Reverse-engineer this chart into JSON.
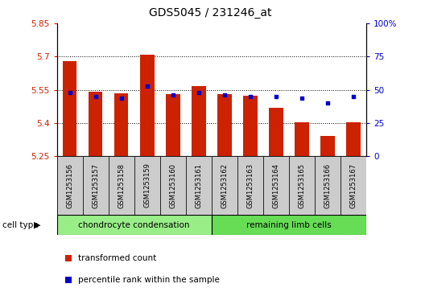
{
  "title": "GDS5045 / 231246_at",
  "samples": [
    "GSM1253156",
    "GSM1253157",
    "GSM1253158",
    "GSM1253159",
    "GSM1253160",
    "GSM1253161",
    "GSM1253162",
    "GSM1253163",
    "GSM1253164",
    "GSM1253165",
    "GSM1253166",
    "GSM1253167"
  ],
  "transformed_counts": [
    5.68,
    5.54,
    5.535,
    5.71,
    5.53,
    5.565,
    5.53,
    5.525,
    5.47,
    5.405,
    5.34,
    5.405
  ],
  "percentile_ranks": [
    48,
    45,
    44,
    53,
    46,
    48,
    46,
    45,
    45,
    44,
    40,
    45
  ],
  "bar_bottom": 5.25,
  "ylim_left": [
    5.25,
    5.85
  ],
  "ylim_right": [
    0,
    100
  ],
  "yticks_left": [
    5.25,
    5.4,
    5.55,
    5.7,
    5.85
  ],
  "yticks_right": [
    0,
    25,
    50,
    75,
    100
  ],
  "ytick_labels_left": [
    "5.25",
    "5.4",
    "5.55",
    "5.7",
    "5.85"
  ],
  "ytick_labels_right": [
    "0",
    "25",
    "50",
    "75",
    "100%"
  ],
  "grid_lines": [
    5.4,
    5.55,
    5.7
  ],
  "bar_color": "#cc2200",
  "dot_color": "#0000cc",
  "cell_types": [
    {
      "label": "chondrocyte condensation",
      "start": 0,
      "end": 6,
      "color": "#99ee88"
    },
    {
      "label": "remaining limb cells",
      "start": 6,
      "end": 12,
      "color": "#66dd55"
    }
  ],
  "cell_type_label": "cell type",
  "legend_items": [
    {
      "label": "transformed count",
      "color": "#cc2200"
    },
    {
      "label": "percentile rank within the sample",
      "color": "#0000cc"
    }
  ],
  "bg_color": "#ffffff",
  "sample_box_color": "#cccccc",
  "xlabel_color": "#cc2200",
  "ylabel_right_color": "#0000cc"
}
